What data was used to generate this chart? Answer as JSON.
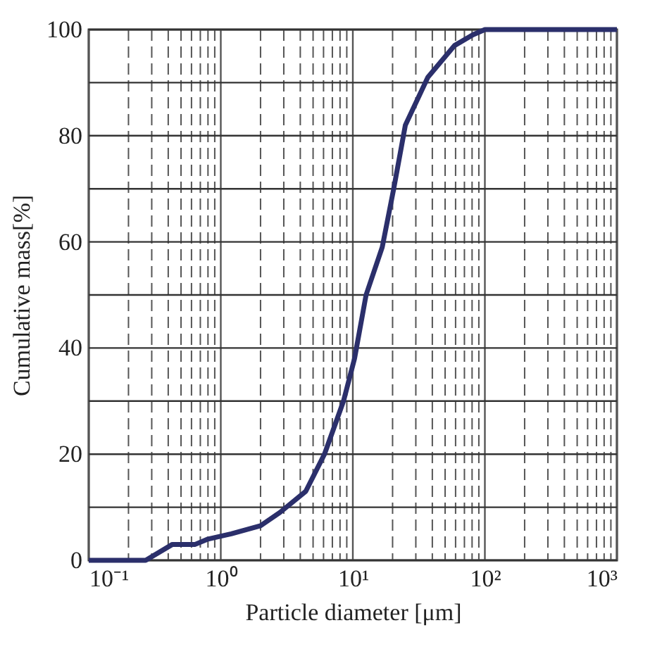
{
  "chart_data": {
    "type": "line",
    "xlabel": "Particle diameter [μm]",
    "ylabel": "Cumulative mass[%]",
    "log": "x",
    "x": [
      0.1,
      0.27,
      0.43,
      0.64,
      0.8,
      1.2,
      2.0,
      2.8,
      4.4,
      6.1,
      8.5,
      10.3,
      12.6,
      16.7,
      20.4,
      25,
      37,
      59,
      81,
      100,
      1000
    ],
    "series": [
      {
        "color": "#2b2f6b",
        "values": [
          0,
          0,
          3,
          3,
          4,
          5,
          6.5,
          9,
          13,
          20,
          30,
          38,
          50,
          59,
          70,
          82,
          91,
          97,
          99,
          100,
          100
        ]
      }
    ],
    "xlim": [
      0.1,
      1000
    ],
    "ylim": [
      0,
      100
    ],
    "xticks": [
      {
        "value": 0.1,
        "label": "10⁻¹"
      },
      {
        "value": 0.2,
        "label": null
      },
      {
        "value": 0.3,
        "label": null
      },
      {
        "value": 0.4,
        "label": null
      },
      {
        "value": 0.5,
        "label": null
      },
      {
        "value": 0.6,
        "label": null
      },
      {
        "value": 0.7,
        "label": null
      },
      {
        "value": 0.8,
        "label": null
      },
      {
        "value": 0.9,
        "label": null
      },
      {
        "value": 1,
        "label": "10⁰"
      },
      {
        "value": 2,
        "label": null
      },
      {
        "value": 3,
        "label": null
      },
      {
        "value": 4,
        "label": null
      },
      {
        "value": 5,
        "label": null
      },
      {
        "value": 6,
        "label": null
      },
      {
        "value": 7,
        "label": null
      },
      {
        "value": 8,
        "label": null
      },
      {
        "value": 9,
        "label": null
      },
      {
        "value": 10,
        "label": "10¹"
      },
      {
        "value": 20,
        "label": null
      },
      {
        "value": 30,
        "label": null
      },
      {
        "value": 40,
        "label": null
      },
      {
        "value": 50,
        "label": null
      },
      {
        "value": 60,
        "label": null
      },
      {
        "value": 70,
        "label": null
      },
      {
        "value": 80,
        "label": null
      },
      {
        "value": 90,
        "label": null
      },
      {
        "value": 100,
        "label": "10²"
      },
      {
        "value": 200,
        "label": null
      },
      {
        "value": 300,
        "label": null
      },
      {
        "value": 400,
        "label": null
      },
      {
        "value": 500,
        "label": null
      },
      {
        "value": 600,
        "label": null
      },
      {
        "value": 700,
        "label": null
      },
      {
        "value": 800,
        "label": null
      },
      {
        "value": 900,
        "label": null
      },
      {
        "value": 1000,
        "label": "10³"
      }
    ],
    "yticks": [
      0,
      {
        "value": 10,
        "label": null
      },
      20,
      {
        "value": 30,
        "label": null
      },
      40,
      {
        "value": 50,
        "label": null
      },
      60,
      {
        "value": 70,
        "label": null
      },
      80,
      {
        "value": 90,
        "label": null
      },
      100
    ],
    "grid": true,
    "marker": "none",
    "line_style": "solid"
  }
}
